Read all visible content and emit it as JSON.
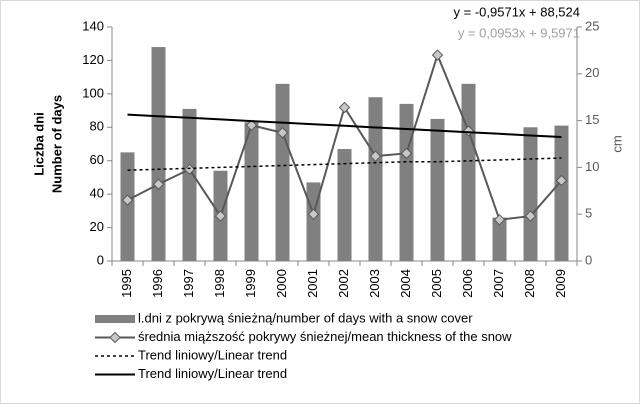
{
  "chart_data": {
    "type": "bar",
    "categories": [
      "1995",
      "1996",
      "1997",
      "1998",
      "1999",
      "2000",
      "2001",
      "2002",
      "2003",
      "2004",
      "2005",
      "2006",
      "2007",
      "2008",
      "2009"
    ],
    "y_label": [
      "Liczba dni",
      "Number of days"
    ],
    "y2_label": "cm",
    "annotations": [
      {
        "text": "y = -0,9571x + 88,524",
        "color": "#000000"
      },
      {
        "text": "y = 0,0953x + 9,5971",
        "color": "#a0a0a0"
      }
    ],
    "ylim": [
      0,
      140
    ],
    "yticks": [
      0,
      20,
      40,
      60,
      80,
      100,
      120,
      140
    ],
    "y2lim": [
      0,
      25
    ],
    "y2ticks": [
      0,
      5,
      10,
      15,
      20,
      25
    ],
    "grid": false,
    "legend": "bottom",
    "series": [
      {
        "name": "l.dni z pokrywą śnieżną/number of days with a snow cover",
        "kind": "bar",
        "color": "#808080",
        "values": [
          65,
          128,
          91,
          54,
          83,
          106,
          47,
          67,
          98,
          94,
          85,
          106,
          26,
          80,
          81
        ]
      },
      {
        "name": "średnia miąższość pokrywy śnieżnej/mean thickness of the snow",
        "kind": "line",
        "axis": "y2",
        "color": "#595959",
        "marker": "diamond",
        "values": [
          6.5,
          8.2,
          9.8,
          4.8,
          14.5,
          13.7,
          5.0,
          16.4,
          11.2,
          11.5,
          22.0,
          13.9,
          4.4,
          4.8,
          8.6
        ]
      },
      {
        "name": "Trend liniowy/Linear trend",
        "kind": "line",
        "axis": "y2",
        "color": "#000000",
        "dash": true,
        "values": [
          9.7,
          9.8,
          9.9,
          10.0,
          10.1,
          10.2,
          10.3,
          10.4,
          10.5,
          10.6,
          10.6,
          10.7,
          10.8,
          10.9,
          11.0
        ]
      },
      {
        "name": "Trend liniowy/Linear trend",
        "kind": "line",
        "color": "#000000",
        "values": [
          87.6,
          86.6,
          85.7,
          84.7,
          83.7,
          82.8,
          81.8,
          80.9,
          79.9,
          79.0,
          78.0,
          77.0,
          76.1,
          75.1,
          74.2
        ]
      }
    ]
  }
}
